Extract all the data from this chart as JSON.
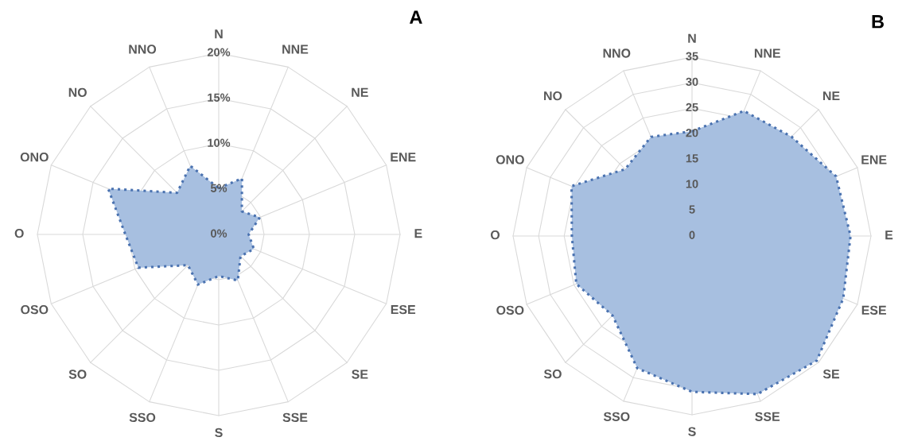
{
  "chart_data": [
    {
      "type": "radar",
      "title": "A",
      "categories": [
        "N",
        "NNE",
        "NE",
        "ENE",
        "E",
        "ESE",
        "SE",
        "SSE",
        "S",
        "SSO",
        "SO",
        "OSO",
        "O",
        "ONO",
        "NO",
        "NNO"
      ],
      "series": [
        {
          "color": "#a7bfe0",
          "values": [
            5.1,
            6.7,
            3.6,
            4.9,
            3.3,
            4.2,
            3.4,
            5.5,
            4.6,
            6.0,
            4.8,
            9.6,
            10.3,
            13.2,
            6.5,
            8.2
          ]
        }
      ],
      "ylim": [
        0,
        20
      ],
      "yticks": [
        {
          "value": 0,
          "label": "0%"
        },
        {
          "value": 5,
          "label": "5%"
        },
        {
          "value": 10,
          "label": "10%"
        },
        {
          "value": 15,
          "label": "15%"
        },
        {
          "value": 20,
          "label": "20%"
        }
      ],
      "grid": true,
      "line_style": "dotted",
      "marker": "none"
    },
    {
      "type": "radar",
      "title": "B",
      "categories": [
        "N",
        "NNE",
        "NE",
        "ENE",
        "E",
        "ESE",
        "SE",
        "SSE",
        "S",
        "SSO",
        "SO",
        "OSO",
        "O",
        "ONO",
        "NO",
        "NNO"
      ],
      "series": [
        {
          "color": "#a7bfe0",
          "values": [
            20.5,
            26.5,
            27.5,
            30.5,
            31,
            32,
            34.5,
            33.5,
            30.5,
            28,
            22,
            24.5,
            23.5,
            25.5,
            18.5,
            21
          ]
        }
      ],
      "ylim": [
        0,
        35
      ],
      "yticks": [
        0,
        5,
        10,
        15,
        20,
        25,
        30,
        35
      ],
      "grid": true,
      "line_style": "dotted",
      "marker": "none"
    }
  ]
}
